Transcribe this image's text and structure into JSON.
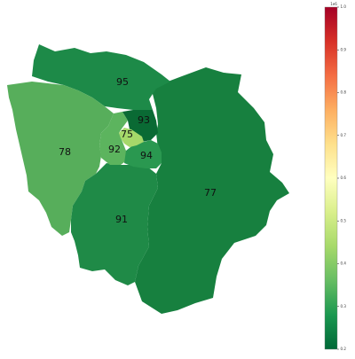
{
  "map": {
    "departments": [
      {
        "code": "95",
        "value": 0.24,
        "color": "#1d8a48"
      },
      {
        "code": "93",
        "value": 0.2,
        "color": "#0a6a34"
      },
      {
        "code": "75",
        "value": 0.41,
        "color": "#a6d86a"
      },
      {
        "code": "92",
        "value": 0.32,
        "color": "#5cb45e"
      },
      {
        "code": "94",
        "value": 0.25,
        "color": "#2a9850"
      },
      {
        "code": "78",
        "value": 0.33,
        "color": "#57ae5b"
      },
      {
        "code": "91",
        "value": 0.24,
        "color": "#1f8a47"
      },
      {
        "code": "77",
        "value": 0.23,
        "color": "#17803f"
      }
    ]
  },
  "colorbar": {
    "scale_label": "1e6",
    "min": 0.2,
    "max": 1.0,
    "colors": [
      "#006837",
      "#1a9850",
      "#66bd63",
      "#a6d96a",
      "#d9ef8b",
      "#ffffbf",
      "#fee08b",
      "#fdae61",
      "#f46d43",
      "#d73027",
      "#a50026"
    ],
    "ticks": [
      "0.2",
      "0.3",
      "0.4",
      "0.5",
      "0.6",
      "0.7",
      "0.8",
      "0.9",
      "1.0"
    ]
  }
}
